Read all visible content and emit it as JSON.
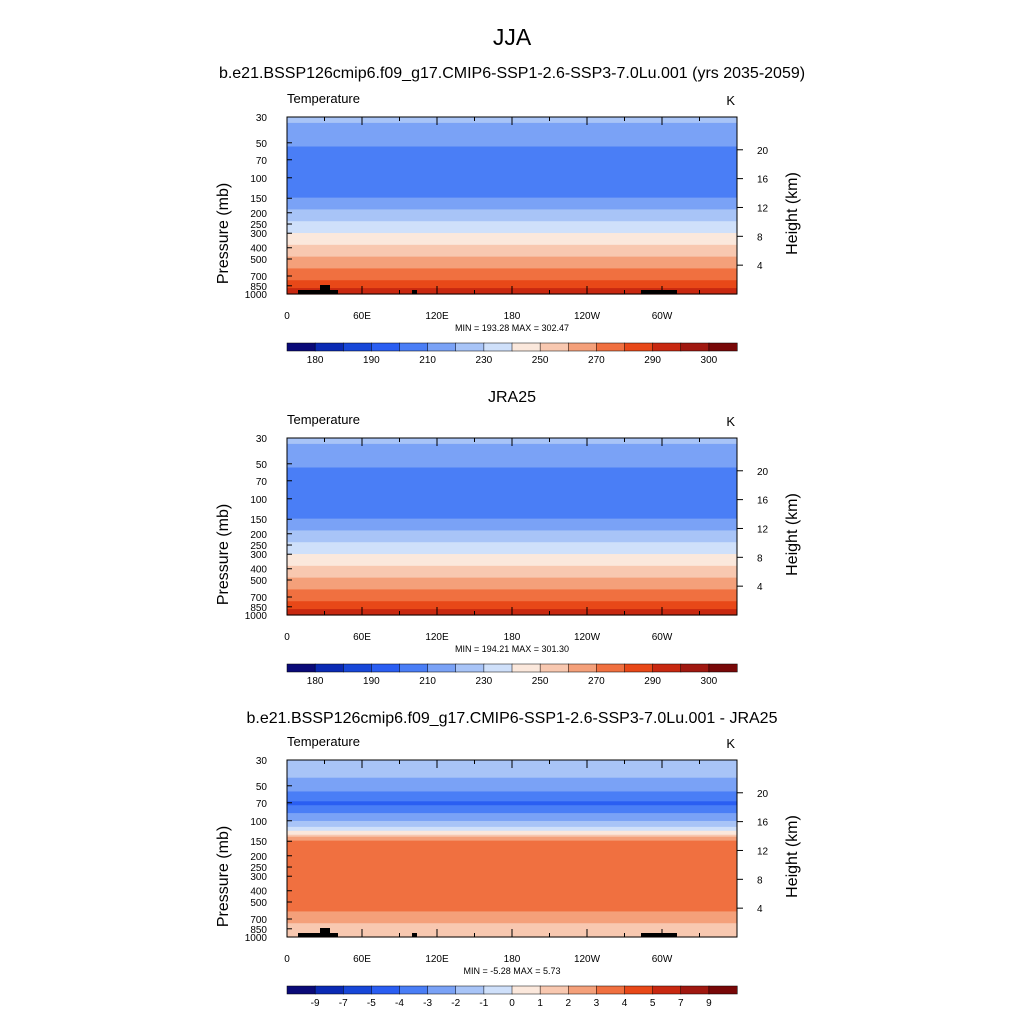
{
  "title": "JJA",
  "chart_data": [
    {
      "type": "heatmap",
      "subtitle": "b.e21.BSSP126cmip6.f09_g17.CMIP6-SSP1-2.6-SSP3-7.0Lu.001 (yrs 2035-2059)",
      "left_label": "Temperature",
      "right_label": "K",
      "ylabel": "Pressure (mb)",
      "y2label": "Height (km)",
      "ytick_labels": [
        "30",
        "50",
        "70",
        "100",
        "150",
        "200",
        "250",
        "300",
        "400",
        "500",
        "700",
        "850",
        "1000"
      ],
      "y2tick_labels": [
        "20",
        "16",
        "12",
        "8",
        "4"
      ],
      "xtick_labels": [
        "0",
        "60E",
        "120E",
        "180",
        "120W",
        "60W"
      ],
      "stats": "MIN = 193.28  MAX = 302.47",
      "colorbar_labels": [
        "180",
        "190",
        "210",
        "230",
        "250",
        "270",
        "290",
        "300"
      ],
      "min": 193.28,
      "max": 302.47,
      "topography": true
    },
    {
      "type": "heatmap",
      "subtitle": "JRA25",
      "left_label": "Temperature",
      "right_label": "K",
      "ylabel": "Pressure (mb)",
      "y2label": "Height (km)",
      "ytick_labels": [
        "30",
        "50",
        "70",
        "100",
        "150",
        "200",
        "250",
        "300",
        "400",
        "500",
        "700",
        "850",
        "1000"
      ],
      "y2tick_labels": [
        "20",
        "16",
        "12",
        "8",
        "4"
      ],
      "xtick_labels": [
        "0",
        "60E",
        "120E",
        "180",
        "120W",
        "60W"
      ],
      "stats": "MIN = 194.21  MAX = 301.30",
      "colorbar_labels": [
        "180",
        "190",
        "210",
        "230",
        "250",
        "270",
        "290",
        "300"
      ],
      "min": 194.21,
      "max": 301.3,
      "topography": false
    },
    {
      "type": "heatmap",
      "subtitle": "b.e21.BSSP126cmip6.f09_g17.CMIP6-SSP1-2.6-SSP3-7.0Lu.001 - JRA25",
      "left_label": "Temperature",
      "right_label": "K",
      "ylabel": "Pressure (mb)",
      "y2label": "Height (km)",
      "ytick_labels": [
        "30",
        "50",
        "70",
        "100",
        "150",
        "200",
        "250",
        "300",
        "400",
        "500",
        "700",
        "850",
        "1000"
      ],
      "y2tick_labels": [
        "20",
        "16",
        "12",
        "8",
        "4"
      ],
      "xtick_labels": [
        "0",
        "60E",
        "120E",
        "180",
        "120W",
        "60W"
      ],
      "stats": "MIN =  -5.28  MAX =   5.73",
      "colorbar_labels": [
        "-9",
        "-7",
        "-5",
        "-4",
        "-3",
        "-2",
        "-1",
        "0",
        "1",
        "2",
        "3",
        "4",
        "5",
        "7",
        "9"
      ],
      "min": -5.28,
      "max": 5.73,
      "topography": true
    }
  ],
  "colors": {
    "abs_scale": [
      "#0a0a78",
      "#0a2ab4",
      "#1747d8",
      "#2a5ef2",
      "#4a7ef6",
      "#7aa2f6",
      "#a8c4f7",
      "#cfe0fa",
      "#fbe8dc",
      "#f8c8b0",
      "#f4a07a",
      "#f07040",
      "#e84818",
      "#c82810",
      "#a01810",
      "#780808"
    ],
    "diff_scale": [
      "#0a0a78",
      "#0a2ab4",
      "#1747d8",
      "#2a5ef2",
      "#4a7ef6",
      "#7aa2f6",
      "#a8c4f7",
      "#cfe0fa",
      "#fbe8dc",
      "#f8c8b0",
      "#f4a07a",
      "#f07040",
      "#e84818",
      "#c82810",
      "#a01810",
      "#780808"
    ],
    "topography": "#000000"
  }
}
